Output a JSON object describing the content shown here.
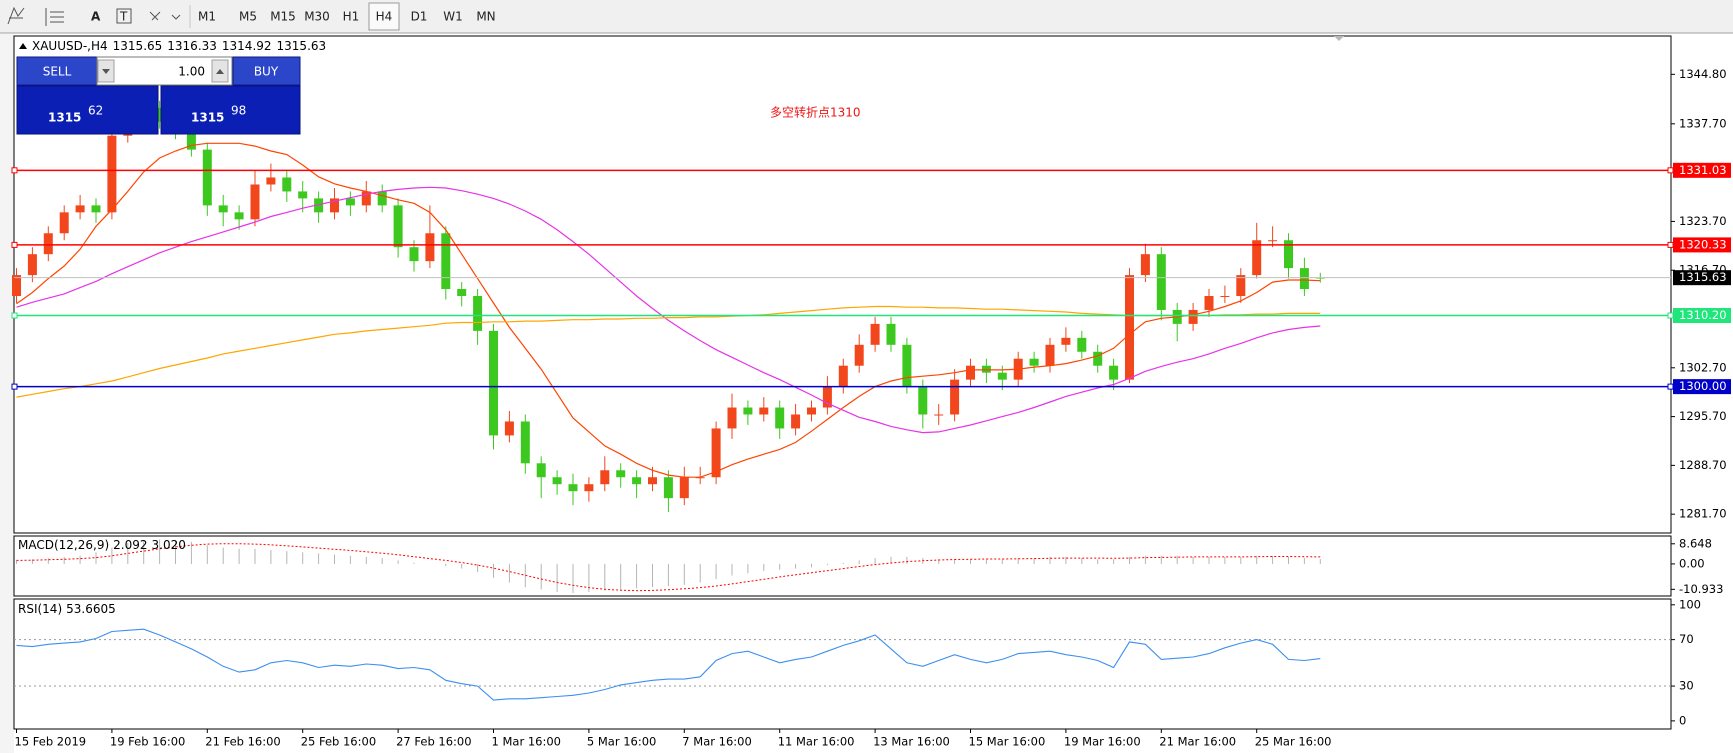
{
  "toolbar": {
    "timeframes": [
      "M1",
      "M5",
      "M15",
      "M30",
      "H1",
      "H4",
      "D1",
      "W1",
      "MN"
    ],
    "text_tool": "A"
  },
  "trade_panel": {
    "sell": "SELL",
    "buy": "BUY",
    "lot": "1.00",
    "bid": [
      "1315",
      "62"
    ],
    "ask": [
      "1315",
      "98"
    ]
  },
  "chart_data": [
    {
      "type": "candlestick",
      "symbol": "XAUUSD-,H4",
      "annotation": "多空转折点1310",
      "up_color": "#f2461c",
      "down_color": "#3cc81e",
      "categories": [
        "15 Feb 2019",
        null,
        null,
        null,
        null,
        null,
        "19 Feb 16:00",
        null,
        null,
        null,
        null,
        null,
        "21 Feb 16:00",
        null,
        null,
        null,
        null,
        null,
        "25 Feb 16:00",
        null,
        null,
        null,
        null,
        null,
        "27 Feb 16:00",
        null,
        null,
        null,
        null,
        null,
        "1 Mar 16:00",
        null,
        null,
        null,
        null,
        null,
        "5 Mar 16:00",
        null,
        null,
        null,
        null,
        null,
        "7 Mar 16:00",
        null,
        null,
        null,
        null,
        null,
        "11 Mar 16:00",
        null,
        null,
        null,
        null,
        null,
        "13 Mar 16:00",
        null,
        null,
        null,
        null,
        null,
        "15 Mar 16:00",
        null,
        null,
        null,
        null,
        null,
        "19 Mar 16:00",
        null,
        null,
        null,
        null,
        null,
        "21 Mar 16:00",
        null,
        null,
        null,
        null,
        null,
        "25 Mar 16:00",
        null,
        null,
        null,
        null
      ],
      "open": [
        1313,
        1316,
        1319,
        1322,
        1325,
        1326,
        1325,
        1336,
        1338,
        1340,
        1338,
        1337,
        1334,
        1326,
        1325,
        1324,
        1329,
        1330,
        1328,
        1327,
        1325,
        1327,
        1326,
        1328,
        1326,
        1320,
        1318,
        1322,
        1314,
        1313,
        1308,
        1293,
        1295,
        1289,
        1287,
        1286,
        1285,
        1286,
        1288,
        1287,
        1286,
        1287,
        1284,
        1287,
        1287,
        1294,
        1297,
        1296,
        1297,
        1294,
        1296,
        1297,
        1300,
        1303,
        1306,
        1309,
        1306,
        1300,
        1296,
        1296,
        1301,
        1303,
        1302,
        1301,
        1304,
        1303,
        1306,
        1307,
        1305,
        1303,
        1301,
        1316,
        1319,
        1311,
        1309,
        1311,
        1313,
        1313,
        1316,
        1321,
        1321,
        1317,
        1315.65
      ],
      "high": [
        1317,
        1320,
        1323,
        1326,
        1327.5,
        1327,
        1337,
        1340,
        1342,
        1341,
        1339,
        1338,
        1335,
        1327.5,
        1326,
        1331,
        1332,
        1331,
        1329.5,
        1328,
        1328.5,
        1328,
        1329.5,
        1329,
        1327,
        1321,
        1326,
        1323,
        1315,
        1314,
        1309,
        1296.5,
        1296,
        1290,
        1288,
        1287.5,
        1287,
        1290,
        1289,
        1288,
        1288.5,
        1288,
        1288.5,
        1288.5,
        1295,
        1299,
        1298,
        1298.5,
        1298,
        1297.5,
        1298,
        1301.5,
        1304,
        1307.5,
        1310,
        1310,
        1307,
        1301,
        1297.5,
        1302.5,
        1304,
        1304,
        1303,
        1305,
        1305,
        1307,
        1308.5,
        1308,
        1306,
        1304,
        1317,
        1320.5,
        1320,
        1312,
        1312,
        1314,
        1314.5,
        1317,
        1323.5,
        1323,
        1322,
        1318.5,
        1316.33
      ],
      "low": [
        1312,
        1315,
        1318,
        1321,
        1324,
        1323.5,
        1324,
        1335,
        1337,
        1337,
        1335.5,
        1333,
        1324.5,
        1323,
        1322.5,
        1323,
        1328,
        1326.5,
        1325,
        1323.5,
        1324,
        1324.5,
        1325,
        1325,
        1318.5,
        1316.5,
        1317,
        1312.5,
        1311.5,
        1306,
        1291,
        1292,
        1287.5,
        1284,
        1284.5,
        1283,
        1283.5,
        1285,
        1285.5,
        1284,
        1285,
        1282,
        1283,
        1286,
        1286,
        1292.5,
        1294.5,
        1295,
        1292.5,
        1293,
        1295,
        1296,
        1299,
        1302,
        1305,
        1305,
        1299,
        1294,
        1294.5,
        1295,
        1300,
        1300.5,
        1299.5,
        1300,
        1302,
        1302,
        1305,
        1304,
        1302,
        1299.5,
        1300.5,
        1315,
        1309.5,
        1306.5,
        1308,
        1310,
        1312,
        1312,
        1315.5,
        1320,
        1315.5,
        1313,
        1314.92
      ],
      "close": [
        1316,
        1319,
        1322,
        1325,
        1326,
        1325,
        1336,
        1338,
        1340,
        1338,
        1337,
        1334,
        1326,
        1325,
        1324,
        1329,
        1330,
        1328,
        1327,
        1325,
        1327,
        1326,
        1328,
        1326,
        1320,
        1318,
        1322,
        1314,
        1313,
        1308,
        1293,
        1295,
        1289,
        1287,
        1286,
        1285,
        1286,
        1288,
        1287,
        1286,
        1287,
        1284,
        1287,
        1287,
        1294,
        1297,
        1296,
        1297,
        1294,
        1296,
        1297,
        1300,
        1303,
        1306,
        1309,
        1306,
        1300,
        1296,
        1296,
        1301,
        1303,
        1302,
        1301,
        1304,
        1303,
        1306,
        1307,
        1305,
        1303,
        1301,
        1316,
        1319,
        1311,
        1309,
        1311,
        1313,
        1313,
        1316,
        1321,
        1321,
        1317,
        1314,
        1315.63
      ],
      "series": [
        {
          "color": "#ff4500",
          "values": [
            1311.9,
            1313.5,
            1315.5,
            1317.3,
            1319.7,
            1323,
            1325.4,
            1328,
            1330.8,
            1332.8,
            1333.8,
            1334.6,
            1334.9,
            1334.9,
            1334.9,
            1334.5,
            1333.8,
            1333.3,
            1331.8,
            1330.1,
            1329.1,
            1328.5,
            1328,
            1327.4,
            1326.8,
            1326.3,
            1325,
            1322.5,
            1319,
            1315.5,
            1312,
            1308.5,
            1305.5,
            1302.5,
            1299,
            1295.5,
            1293.5,
            1291.5,
            1290.3,
            1289,
            1288,
            1287.3,
            1287,
            1287,
            1287.8,
            1288.8,
            1289.6,
            1290.3,
            1291,
            1292,
            1293.6,
            1295.3,
            1297,
            1298.6,
            1300,
            1300.8,
            1301.3,
            1301.5,
            1301.7,
            1302,
            1302.4,
            1302.4,
            1302.4,
            1302.5,
            1302.8,
            1303,
            1303.3,
            1303.8,
            1304.4,
            1305.5,
            1307.5,
            1309.3,
            1309.8,
            1310,
            1310.3,
            1310.8,
            1311.5,
            1312.3,
            1313.5,
            1315,
            1315.3,
            1315.3,
            1315.2
          ]
        },
        {
          "color": "#e633e6",
          "values": [
            1311.4,
            1312.1,
            1312.7,
            1313.3,
            1314.2,
            1315.1,
            1316.2,
            1317.2,
            1318.2,
            1319.2,
            1320,
            1320.8,
            1321.5,
            1322.2,
            1322.9,
            1323.6,
            1324.4,
            1325,
            1325.6,
            1326.1,
            1326.6,
            1327.1,
            1327.6,
            1328,
            1328.3,
            1328.5,
            1328.6,
            1328.5,
            1328.1,
            1327.6,
            1327,
            1326.2,
            1325.2,
            1324,
            1322.5,
            1320.8,
            1319,
            1317,
            1315,
            1313,
            1311.2,
            1309.5,
            1308,
            1306.6,
            1305.3,
            1304.2,
            1303.1,
            1302,
            1301,
            1299.9,
            1298.8,
            1297.6,
            1296.6,
            1295.6,
            1295,
            1294.3,
            1293.8,
            1293.4,
            1293.5,
            1294,
            1294.5,
            1295.1,
            1295.7,
            1296.3,
            1297,
            1297.8,
            1298.6,
            1299.2,
            1299.8,
            1300.3,
            1301.2,
            1302.2,
            1302.9,
            1303.5,
            1304,
            1304.7,
            1305.5,
            1306.2,
            1307,
            1307.7,
            1308.2,
            1308.5,
            1308.7
          ]
        },
        {
          "color": "#ffa500",
          "values": [
            1298.5,
            1298.9,
            1299.3,
            1299.7,
            1300,
            1300.4,
            1300.8,
            1301.4,
            1302,
            1302.6,
            1303.1,
            1303.6,
            1304.1,
            1304.7,
            1305.1,
            1305.5,
            1305.9,
            1306.3,
            1306.7,
            1307.1,
            1307.5,
            1307.7,
            1308,
            1308.2,
            1308.4,
            1308.6,
            1308.8,
            1309.1,
            1309.2,
            1309.2,
            1309.3,
            1309.3,
            1309.4,
            1309.4,
            1309.5,
            1309.6,
            1309.6,
            1309.7,
            1309.7,
            1309.8,
            1309.8,
            1309.9,
            1309.9,
            1310,
            1310,
            1310.1,
            1310.2,
            1310.3,
            1310.5,
            1310.7,
            1310.9,
            1311.1,
            1311.3,
            1311.4,
            1311.5,
            1311.5,
            1311.4,
            1311.4,
            1311.3,
            1311.3,
            1311.2,
            1311.1,
            1311.1,
            1311,
            1310.9,
            1310.8,
            1310.7,
            1310.5,
            1310.4,
            1310.3,
            1310.2,
            1310.2,
            1310.2,
            1310.2,
            1310.2,
            1310.2,
            1310.3,
            1310.3,
            1310.4,
            1310.4,
            1310.5,
            1310.5,
            1310.5
          ]
        }
      ],
      "levels": [
        {
          "value": 1331.03,
          "color": "#ff0000"
        },
        {
          "value": 1320.33,
          "color": "#ff0000"
        },
        {
          "value": 1310.2,
          "label": "1310.20",
          "color": "#1ee67a"
        },
        {
          "value": 1300,
          "label": "1300.00",
          "color": "#0000c8"
        }
      ],
      "price_line_color": "#c0c0c0",
      "ylim": [
        1279,
        1350.3
      ],
      "yticks": [
        {
          "value": 1281.7,
          "label": "1281.70"
        },
        {
          "value": 1288.7,
          "label": "1288.70"
        },
        {
          "value": 1295.7,
          "label": "1295.70"
        },
        {
          "value": 1302.7,
          "label": "1302.70"
        },
        {
          "value": 1316.7,
          "label": "1316.70"
        },
        {
          "value": 1323.7,
          "label": "1323.70"
        },
        {
          "value": 1337.7,
          "label": "1337.70"
        },
        {
          "value": 1344.8,
          "label": "1344.80"
        }
      ]
    },
    {
      "type": "macd",
      "title": "MACD(12,26,9)",
      "readout": [
        "2.092",
        "3.020"
      ],
      "histogram": {
        "color": "#b4b4b4",
        "values": [
          1.5,
          2,
          2.5,
          3,
          3.5,
          5,
          7,
          9,
          10,
          10.5,
          10,
          9.5,
          8,
          7,
          6.5,
          6.5,
          6,
          5.5,
          5,
          4.5,
          4,
          3.5,
          3,
          2.5,
          1.5,
          0.5,
          0,
          -1,
          -2,
          -3.5,
          -6,
          -8,
          -10,
          -11,
          -12,
          -12.5,
          -12,
          -11.5,
          -11,
          -10.5,
          -10,
          -9.5,
          -9,
          -8,
          -6.5,
          -5,
          -4,
          -3,
          -2.5,
          -2,
          -1.5,
          -0.5,
          0.5,
          1.5,
          2.5,
          3,
          3,
          2.5,
          2,
          2,
          2,
          2,
          2,
          2.5,
          2.5,
          3,
          3,
          2.5,
          2,
          2,
          3,
          3.5,
          3.5,
          3.5,
          3,
          3,
          3,
          3,
          3.5,
          3.5,
          3,
          2.5,
          2.092
        ]
      },
      "signal": {
        "color": "#ff0000",
        "values": [
          1.5,
          1.6,
          1.8,
          2,
          2.3,
          2.7,
          3.5,
          4.5,
          5.5,
          6.5,
          7.3,
          8,
          8.5,
          8.7,
          8.7,
          8.5,
          8.2,
          7.8,
          7.3,
          6.8,
          6.3,
          5.8,
          5.2,
          4.6,
          3.9,
          3.1,
          2.3,
          1.5,
          0.6,
          -0.5,
          -1.8,
          -3.3,
          -4.9,
          -6.5,
          -8,
          -9.2,
          -10.2,
          -10.9,
          -11.3,
          -11.5,
          -11.4,
          -11.1,
          -10.7,
          -10.2,
          -9.5,
          -8.6,
          -7.6,
          -6.6,
          -5.6,
          -4.7,
          -3.8,
          -2.9,
          -2,
          -1.1,
          -0.3,
          0.4,
          1,
          1.4,
          1.7,
          1.9,
          2,
          2.1,
          2.1,
          2.2,
          2.3,
          2.4,
          2.5,
          2.5,
          2.5,
          2.4,
          2.5,
          2.7,
          2.8,
          2.9,
          3,
          3,
          3,
          3,
          3.1,
          3.2,
          3.2,
          3.1,
          3.02
        ]
      },
      "ylim": [
        -13.8,
        12
      ],
      "yticks": [
        8.648,
        {
          "value": 0,
          "label": "0.00"
        },
        -10.933
      ]
    },
    {
      "type": "line",
      "title": "RSI(14)",
      "color": "#3d8ff0",
      "values": [
        65,
        64,
        66,
        67,
        68,
        71,
        77,
        78,
        79,
        74,
        68,
        62,
        55,
        47,
        42,
        44,
        50,
        52,
        50,
        46,
        48,
        47,
        49,
        48,
        45,
        46,
        44,
        35,
        32,
        30,
        18,
        19,
        19,
        20,
        21,
        22,
        24,
        27,
        31,
        33,
        35,
        36,
        36,
        38,
        52,
        58,
        60,
        55,
        50,
        53,
        55,
        60,
        65,
        69,
        74,
        62,
        50,
        47,
        52,
        57,
        53,
        50,
        53,
        58,
        59,
        60,
        57,
        55,
        52,
        46,
        68,
        66,
        53,
        54,
        55,
        58,
        63,
        67,
        70,
        66,
        53,
        52,
        53.6605
      ],
      "levels": [
        70,
        30
      ],
      "ylim": [
        -7,
        105
      ],
      "yticks": [
        100,
        70,
        30,
        0
      ]
    }
  ]
}
